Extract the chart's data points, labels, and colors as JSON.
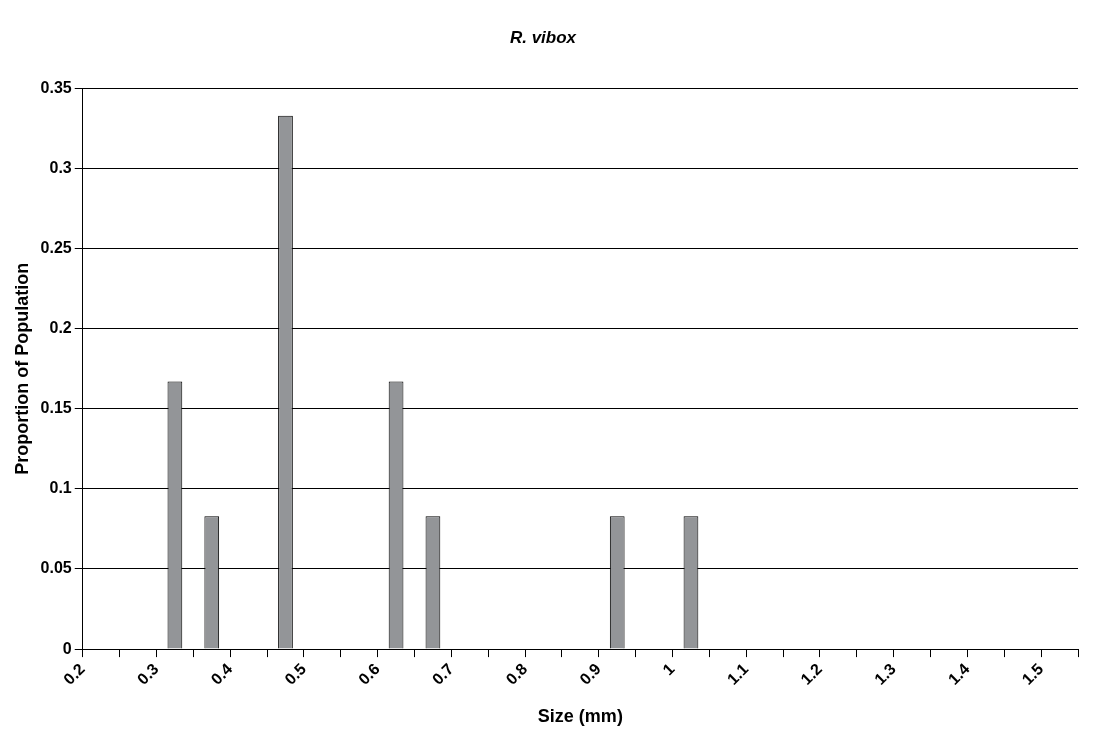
{
  "chart_data": {
    "type": "bar",
    "title": "R. vibox",
    "xlabel": "Size (mm)",
    "ylabel": "Proportion of Population",
    "x": [
      0.325,
      0.375,
      0.475,
      0.625,
      0.675,
      0.925,
      1.025
    ],
    "values": [
      0.167,
      0.083,
      0.333,
      0.167,
      0.083,
      0.083,
      0.083
    ],
    "color": "#939598",
    "xlim": [
      0.2,
      1.55
    ],
    "xticks": [
      0.2,
      {
        "value": 0.25,
        "label": null
      },
      0.3,
      {
        "value": 0.35,
        "label": null
      },
      0.4,
      {
        "value": 0.45,
        "label": null
      },
      0.5,
      {
        "value": 0.55,
        "label": null
      },
      0.6,
      {
        "value": 0.65,
        "label": null
      },
      0.7,
      {
        "value": 0.75,
        "label": null
      },
      0.8,
      {
        "value": 0.85,
        "label": null
      },
      0.9,
      {
        "value": 0.95,
        "label": null
      },
      1,
      {
        "value": 1.05,
        "label": null
      },
      1.1,
      {
        "value": 1.15,
        "label": null
      },
      1.2,
      {
        "value": 1.25,
        "label": null
      },
      1.3,
      {
        "value": 1.35,
        "label": null
      },
      1.4,
      {
        "value": 1.45,
        "label": null
      },
      1.5,
      {
        "value": 1.55,
        "label": null
      }
    ],
    "ylim": [
      0,
      0.35
    ],
    "yticks": [
      0,
      0.05,
      0.1,
      0.15,
      0.2,
      0.25,
      0.3,
      0.35
    ],
    "grid": "y"
  }
}
